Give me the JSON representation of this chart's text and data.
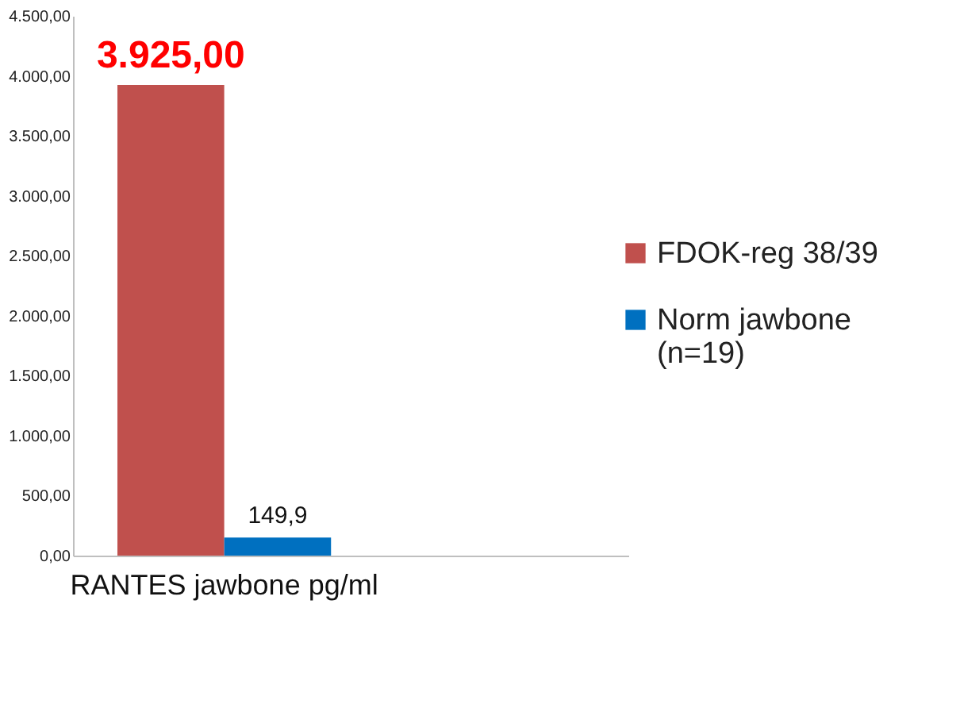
{
  "chart_data": {
    "type": "bar",
    "categories": [
      "RANTES jawbone pg/ml"
    ],
    "series": [
      {
        "name": "FDOK-reg 38/39",
        "color": "#c0504d",
        "values": [
          3925
        ],
        "value_labels": [
          "3.925,00"
        ]
      },
      {
        "name": "Norm jawbone (n=19)",
        "color": "#0070c0",
        "values": [
          149.9
        ],
        "value_labels": [
          "149,9"
        ]
      }
    ],
    "ylim": [
      0,
      4500
    ],
    "yticks": [
      {
        "value": 0,
        "label": "0,00"
      },
      {
        "value": 500,
        "label": "500,00"
      },
      {
        "value": 1000,
        "label": "1.000,00"
      },
      {
        "value": 1500,
        "label": "1.500,00"
      },
      {
        "value": 2000,
        "label": "2.000,00"
      },
      {
        "value": 2500,
        "label": "2.500,00"
      },
      {
        "value": 3000,
        "label": "3.000,00"
      },
      {
        "value": 3500,
        "label": "3.500,00"
      },
      {
        "value": 4000,
        "label": "4.000,00"
      },
      {
        "value": 4500,
        "label": "4.500,00"
      }
    ],
    "grid": false,
    "legend": "right"
  }
}
